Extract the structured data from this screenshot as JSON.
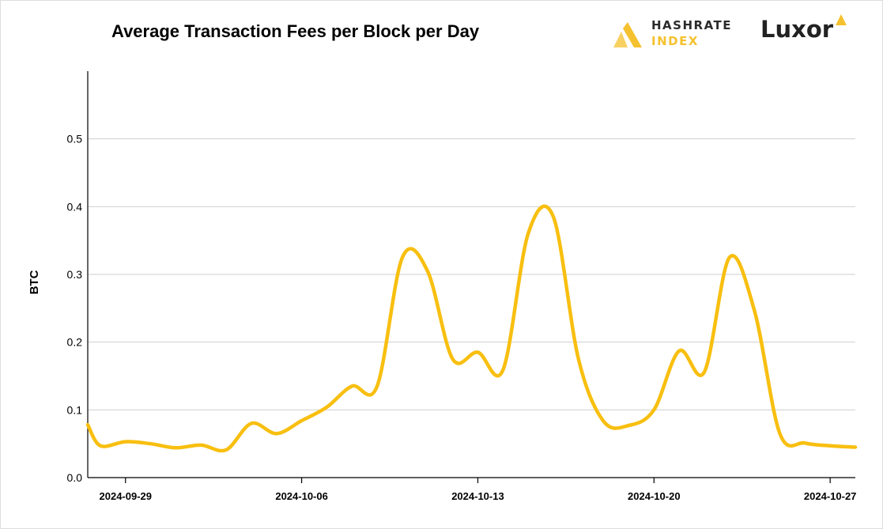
{
  "header": {
    "title": "Average Transaction Fees per Block per Day",
    "brand_hashrate_line1": "HASHRATE",
    "brand_hashrate_line2": "INDEX",
    "brand_luxor": "Luxor"
  },
  "colors": {
    "line": "#f8bf10",
    "grid": "#cfcfcf",
    "axis": "#000000",
    "brand_gold": "#f5c12e"
  },
  "chart_data": {
    "type": "line",
    "title": "Average Transaction Fees per Block per Day",
    "xlabel": "",
    "ylabel": "BTC",
    "ylim": [
      0,
      0.6
    ],
    "yticks": [
      0.0,
      0.1,
      0.2,
      0.3,
      0.4,
      0.5
    ],
    "ytick_labels": [
      "0.0",
      "0.1",
      "0.2",
      "0.3",
      "0.4",
      "0.5"
    ],
    "xlim": [
      "2024-09-27 12:00",
      "2024-10-28"
    ],
    "xticks": [
      "2024-09-29",
      "2024-10-06",
      "2024-10-13",
      "2024-10-20",
      "2024-10-27"
    ],
    "grid": true,
    "legend": "none",
    "series": [
      {
        "x": [
          "2024-09-27 12:00",
          "2024-09-28",
          "2024-09-29",
          "2024-09-30",
          "2024-10-01",
          "2024-10-02",
          "2024-10-03",
          "2024-10-04",
          "2024-10-05",
          "2024-10-06",
          "2024-10-07",
          "2024-10-08",
          "2024-10-09",
          "2024-10-10",
          "2024-10-11",
          "2024-10-12",
          "2024-10-13",
          "2024-10-14",
          "2024-10-15",
          "2024-10-16",
          "2024-10-17",
          "2024-10-18",
          "2024-10-19",
          "2024-10-20",
          "2024-10-21",
          "2024-10-22",
          "2024-10-23",
          "2024-10-24",
          "2024-10-25",
          "2024-10-26",
          "2024-10-27",
          "2024-10-28"
        ],
        "y": [
          0.078,
          0.047,
          0.053,
          0.05,
          0.044,
          0.048,
          0.041,
          0.08,
          0.065,
          0.084,
          0.104,
          0.135,
          0.135,
          0.325,
          0.305,
          0.175,
          0.185,
          0.159,
          0.36,
          0.385,
          0.175,
          0.083,
          0.077,
          0.1,
          0.187,
          0.156,
          0.325,
          0.245,
          0.065,
          0.051,
          0.047,
          0.045
        ]
      }
    ]
  }
}
